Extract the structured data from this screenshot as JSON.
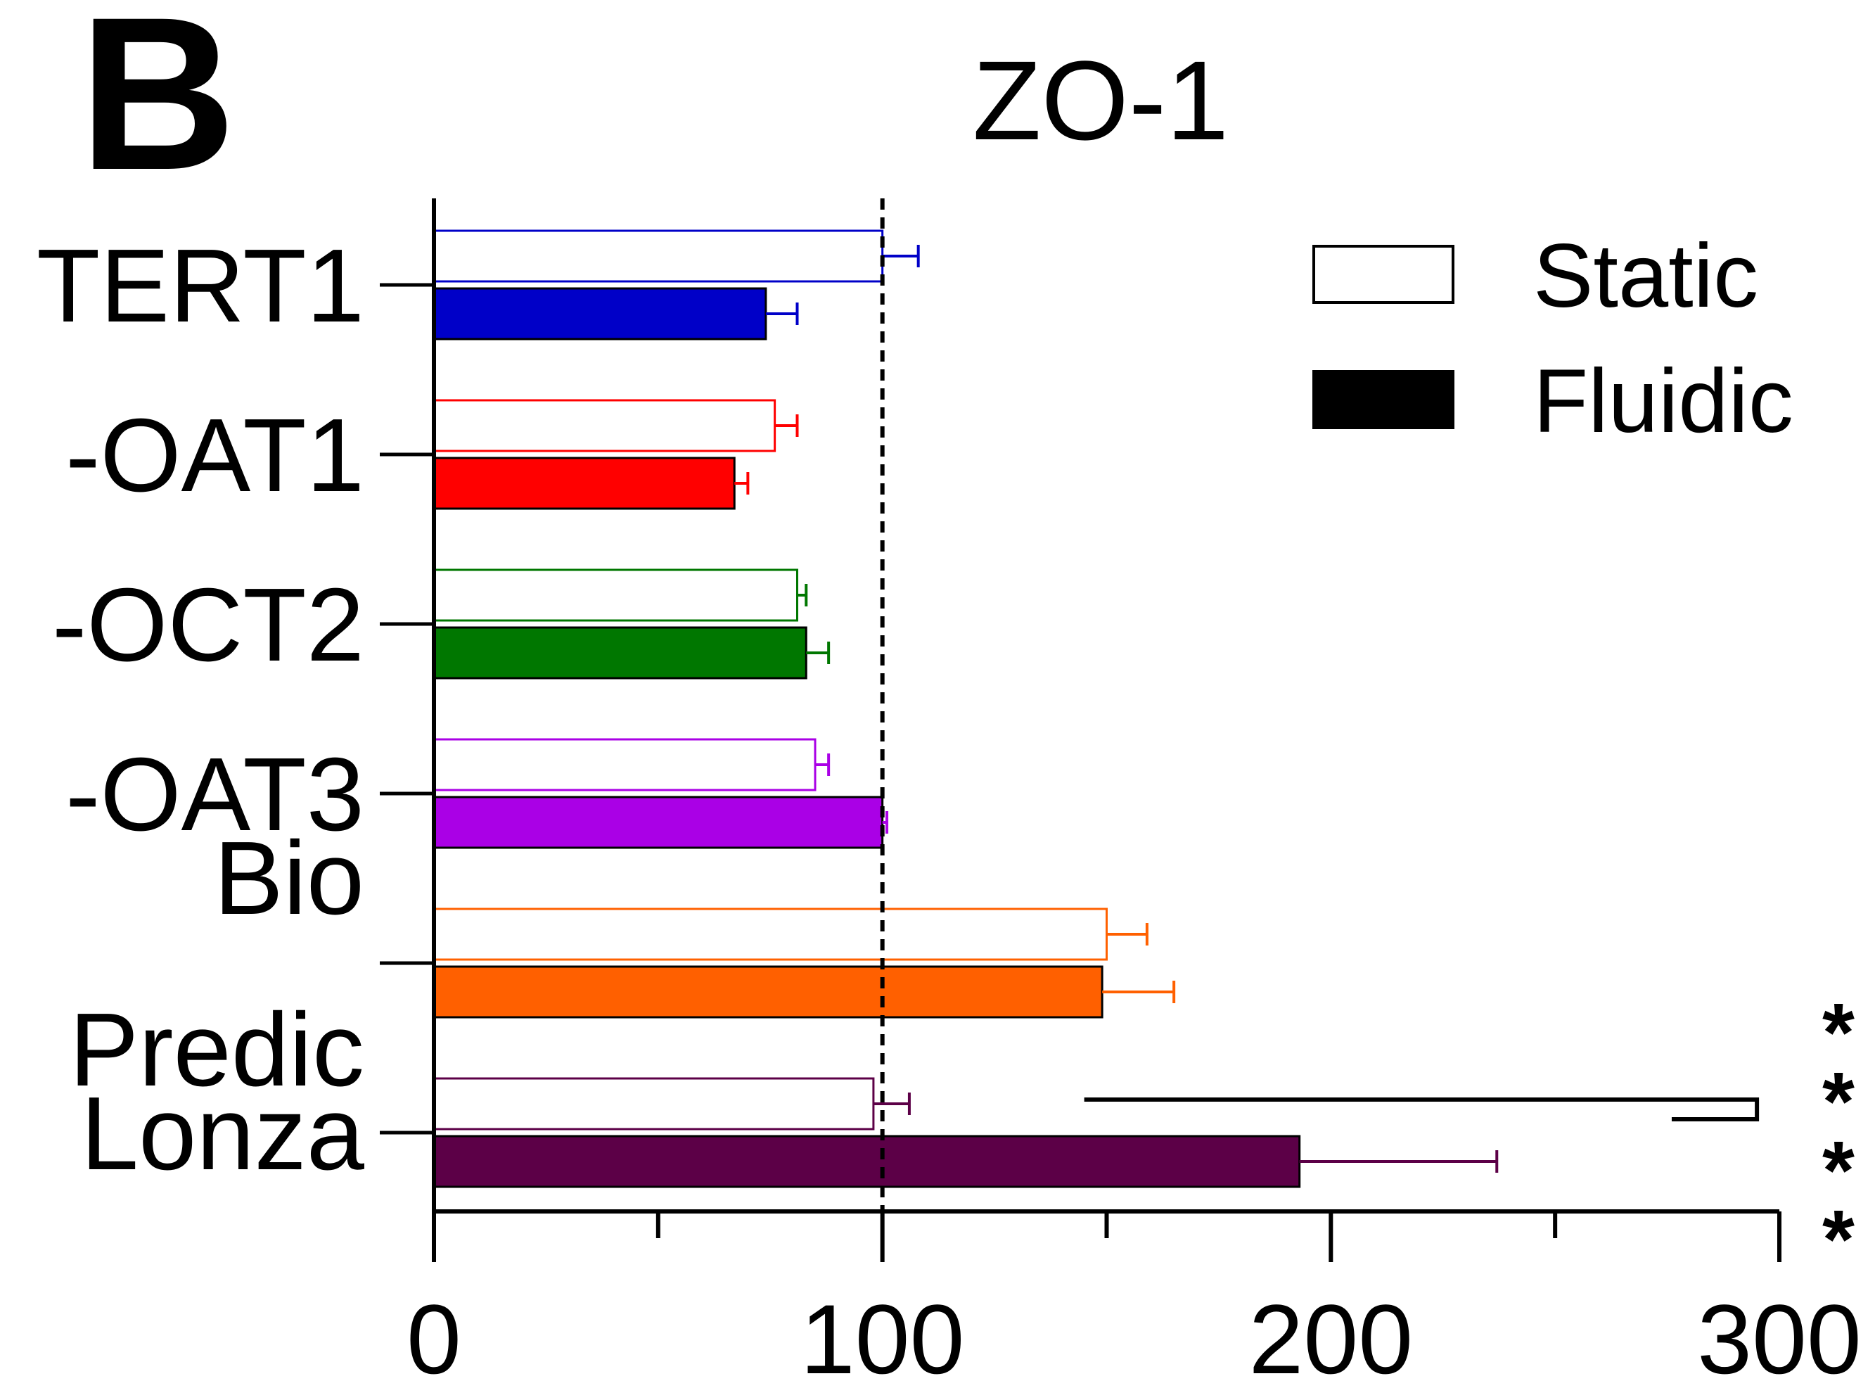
{
  "panel_label": "B",
  "chart_data": {
    "type": "bar",
    "orientation": "horizontal",
    "title": "ZO-1",
    "categories": [
      [
        "TERT1"
      ],
      [
        "-OAT1"
      ],
      [
        "-OCT2"
      ],
      [
        "-OAT3"
      ],
      [
        "Bio",
        "Predic"
      ],
      [
        "Lonza"
      ]
    ],
    "colors": [
      "#0000c8",
      "#ff0000",
      "#007700",
      "#aa00e6",
      "#ff6000",
      "#5c0047"
    ],
    "series": [
      {
        "name": "Static",
        "fill": "none",
        "values": [
          100,
          76,
          81,
          85,
          150,
          98
        ],
        "errors": [
          8,
          5,
          2,
          3,
          9,
          8
        ]
      },
      {
        "name": "Fluidic",
        "fill": "solid",
        "values": [
          74,
          67,
          83,
          100,
          149,
          193
        ],
        "errors": [
          7,
          3,
          5,
          1,
          16,
          44
        ]
      }
    ],
    "xlim": [
      0,
      300
    ],
    "x_ticks": [
      "0",
      "100",
      "200",
      "300"
    ],
    "minor_tick_step": 50,
    "reference_line": 100,
    "legend_position": "top-right",
    "grid": false,
    "significance": {
      "label": "****",
      "category": "Lonza",
      "from_static": 145,
      "to_fluidic": 276,
      "bracket_x": 295
    }
  }
}
